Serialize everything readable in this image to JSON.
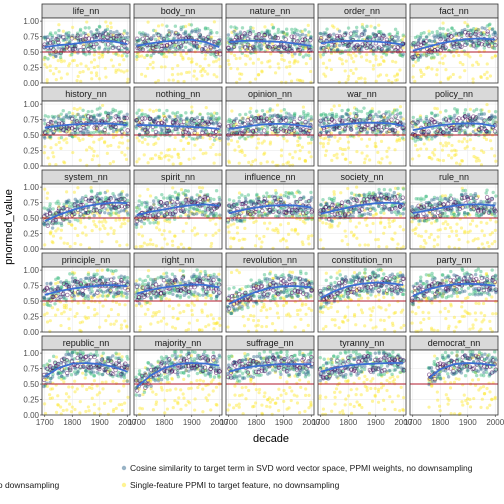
{
  "chart_data": {
    "type": "scatter",
    "facet_layout": "5x5 grid, strip labels on top",
    "xlabel": "decade",
    "ylabel": "pnormed_value",
    "xlim": [
      1690,
      2010
    ],
    "ylim": [
      0,
      1.05
    ],
    "x_ticks": [
      1700,
      1800,
      1900,
      2000
    ],
    "y_ticks": [
      0.0,
      0.25,
      0.5,
      0.75,
      1.0
    ],
    "y_tick_labels": [
      "0.00",
      "0.25",
      "0.50",
      "0.75",
      "1.00"
    ],
    "reference_line": {
      "y": 0.5,
      "color": "#b2182b"
    },
    "trend_color": "#3b6fd4",
    "legend": {
      "position": "bottom",
      "items": [
        {
          "label": "pling",
          "color": "#440154"
        },
        {
          "label": "Cosine similarity to target term in SVD word vector space, PPMI weights, no downsampling",
          "color": "#31688e"
        },
        {
          "label": "DFM, no downsampling",
          "color": "#35b779"
        },
        {
          "label": "Single-feature PPMI to target feature, no downsampling",
          "color": "#fde725"
        }
      ]
    },
    "panels": [
      {
        "name": "life_nn",
        "trend": {
          "x": [
            1700,
            1750,
            1800,
            1850,
            1900,
            1950,
            2000
          ],
          "y": [
            0.58,
            0.61,
            0.63,
            0.66,
            0.69,
            0.67,
            0.63
          ]
        }
      },
      {
        "name": "body_nn",
        "trend": {
          "x": [
            1700,
            1750,
            1800,
            1850,
            1900,
            1950,
            2000
          ],
          "y": [
            0.6,
            0.64,
            0.67,
            0.69,
            0.7,
            0.66,
            0.58
          ]
        }
      },
      {
        "name": "nature_nn",
        "trend": {
          "x": [
            1700,
            1750,
            1800,
            1850,
            1900,
            1950,
            2000
          ],
          "y": [
            0.66,
            0.68,
            0.68,
            0.67,
            0.66,
            0.63,
            0.6
          ]
        }
      },
      {
        "name": "order_nn",
        "trend": {
          "x": [
            1700,
            1750,
            1800,
            1850,
            1900,
            1950,
            2000
          ],
          "y": [
            0.64,
            0.67,
            0.68,
            0.68,
            0.67,
            0.65,
            0.62
          ]
        }
      },
      {
        "name": "fact_nn",
        "trend": {
          "x": [
            1700,
            1750,
            1800,
            1850,
            1900,
            1950,
            2000
          ],
          "y": [
            0.52,
            0.58,
            0.64,
            0.68,
            0.71,
            0.72,
            0.7
          ]
        }
      },
      {
        "name": "history_nn",
        "trend": {
          "x": [
            1700,
            1750,
            1800,
            1850,
            1900,
            1950,
            2000
          ],
          "y": [
            0.62,
            0.65,
            0.67,
            0.68,
            0.69,
            0.68,
            0.66
          ]
        }
      },
      {
        "name": "nothing_nn",
        "trend": {
          "x": [
            1700,
            1750,
            1800,
            1850,
            1900,
            1950,
            2000
          ],
          "y": [
            0.66,
            0.66,
            0.65,
            0.64,
            0.63,
            0.62,
            0.6
          ]
        }
      },
      {
        "name": "opinion_nn",
        "trend": {
          "x": [
            1700,
            1750,
            1800,
            1850,
            1900,
            1950,
            2000
          ],
          "y": [
            0.6,
            0.63,
            0.66,
            0.68,
            0.68,
            0.66,
            0.63
          ]
        }
      },
      {
        "name": "war_nn",
        "trend": {
          "x": [
            1700,
            1750,
            1800,
            1850,
            1900,
            1950,
            2000
          ],
          "y": [
            0.63,
            0.66,
            0.68,
            0.7,
            0.7,
            0.69,
            0.65
          ]
        }
      },
      {
        "name": "policy_nn",
        "trend": {
          "x": [
            1700,
            1750,
            1800,
            1850,
            1900,
            1950,
            2000
          ],
          "y": [
            0.58,
            0.62,
            0.66,
            0.68,
            0.69,
            0.68,
            0.64
          ]
        }
      },
      {
        "name": "system_nn",
        "trend": {
          "x": [
            1700,
            1750,
            1800,
            1850,
            1900,
            1950,
            2000
          ],
          "y": [
            0.45,
            0.55,
            0.63,
            0.69,
            0.73,
            0.75,
            0.74
          ]
        }
      },
      {
        "name": "spirit_nn",
        "trend": {
          "x": [
            1700,
            1750,
            1800,
            1850,
            1900,
            1950,
            2000
          ],
          "y": [
            0.55,
            0.6,
            0.64,
            0.68,
            0.71,
            0.72,
            0.7
          ]
        }
      },
      {
        "name": "influence_nn",
        "trend": {
          "x": [
            1700,
            1750,
            1800,
            1850,
            1900,
            1950,
            2000
          ],
          "y": [
            0.58,
            0.63,
            0.67,
            0.7,
            0.71,
            0.7,
            0.67
          ]
        }
      },
      {
        "name": "society_nn",
        "trend": {
          "x": [
            1700,
            1750,
            1800,
            1850,
            1900,
            1950,
            2000
          ],
          "y": [
            0.57,
            0.62,
            0.67,
            0.71,
            0.74,
            0.75,
            0.73
          ]
        }
      },
      {
        "name": "rule_nn",
        "trend": {
          "x": [
            1700,
            1750,
            1800,
            1850,
            1900,
            1950,
            2000
          ],
          "y": [
            0.58,
            0.62,
            0.66,
            0.7,
            0.72,
            0.72,
            0.7
          ]
        }
      },
      {
        "name": "principle_nn",
        "trend": {
          "x": [
            1700,
            1750,
            1800,
            1850,
            1900,
            1950,
            2000
          ],
          "y": [
            0.6,
            0.66,
            0.7,
            0.73,
            0.75,
            0.76,
            0.74
          ]
        }
      },
      {
        "name": "right_nn",
        "trend": {
          "x": [
            1700,
            1750,
            1800,
            1850,
            1900,
            1950,
            2000
          ],
          "y": [
            0.62,
            0.68,
            0.72,
            0.75,
            0.77,
            0.76,
            0.72
          ]
        }
      },
      {
        "name": "revolution_nn",
        "trend": {
          "x": [
            1700,
            1750,
            1800,
            1850,
            1900,
            1950,
            2000
          ],
          "y": [
            0.45,
            0.56,
            0.65,
            0.71,
            0.74,
            0.74,
            0.72
          ]
        }
      },
      {
        "name": "constitution_nn",
        "trend": {
          "x": [
            1700,
            1750,
            1800,
            1850,
            1900,
            1950,
            2000
          ],
          "y": [
            0.55,
            0.66,
            0.74,
            0.78,
            0.8,
            0.79,
            0.76
          ]
        }
      },
      {
        "name": "party_nn",
        "trend": {
          "x": [
            1700,
            1750,
            1800,
            1850,
            1900,
            1950,
            2000
          ],
          "y": [
            0.58,
            0.68,
            0.74,
            0.77,
            0.78,
            0.77,
            0.75
          ]
        }
      },
      {
        "name": "republic_nn",
        "trend": {
          "x": [
            1700,
            1750,
            1800,
            1850,
            1900,
            1950,
            2000
          ],
          "y": [
            0.62,
            0.76,
            0.83,
            0.84,
            0.82,
            0.78,
            0.7
          ]
        }
      },
      {
        "name": "majority_nn",
        "trend": {
          "x": [
            1700,
            1750,
            1800,
            1850,
            1900,
            1950,
            2000
          ],
          "y": [
            0.45,
            0.64,
            0.76,
            0.82,
            0.84,
            0.83,
            0.8
          ]
        }
      },
      {
        "name": "suffrage_nn",
        "trend": {
          "x": [
            1700,
            1750,
            1800,
            1850,
            1900,
            1950,
            2000
          ],
          "y": [
            0.7,
            0.76,
            0.79,
            0.81,
            0.82,
            0.82,
            0.82
          ]
        }
      },
      {
        "name": "tyranny_nn",
        "trend": {
          "x": [
            1700,
            1750,
            1800,
            1850,
            1900,
            1950,
            2000
          ],
          "y": [
            0.7,
            0.76,
            0.8,
            0.82,
            0.83,
            0.84,
            0.84
          ]
        }
      },
      {
        "name": "democrat_nn",
        "trend": {
          "x": [
            1760,
            1800,
            1850,
            1900,
            1950,
            2000
          ],
          "y": [
            0.6,
            0.74,
            0.82,
            0.84,
            0.83,
            0.8
          ]
        }
      }
    ]
  }
}
